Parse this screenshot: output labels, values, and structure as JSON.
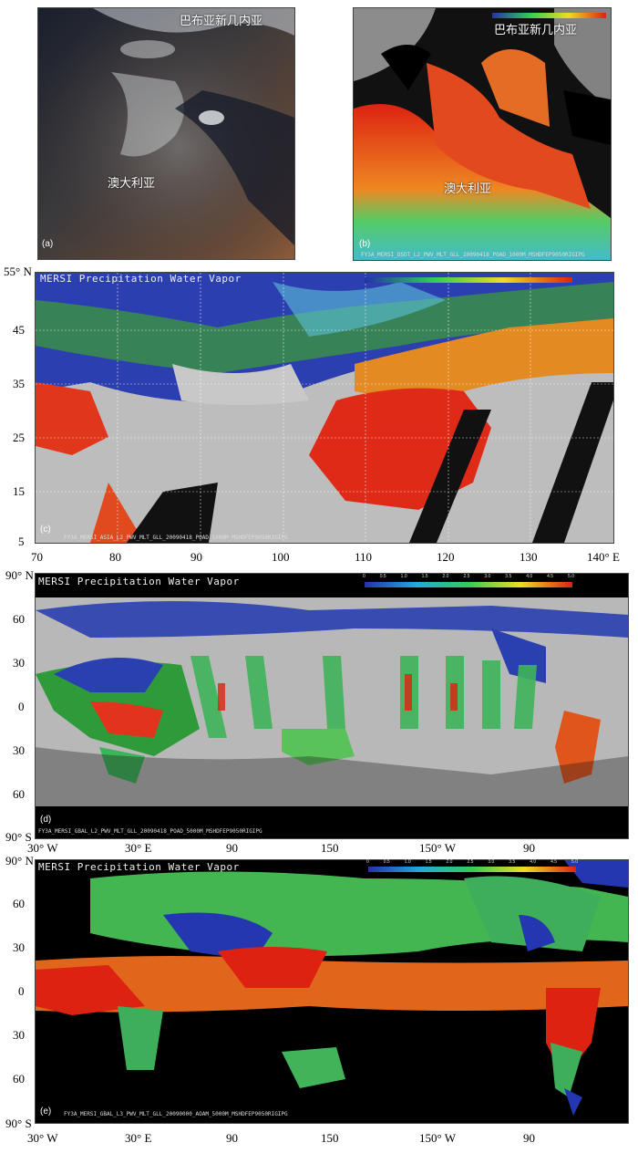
{
  "panels": {
    "a": {
      "label": "(a)",
      "place_top": "巴布亚新几内亚",
      "place_main": "澳大利亚"
    },
    "b": {
      "label": "(b)",
      "place_top": "巴布亚新几内亚",
      "place_main": "澳大利亚",
      "filename": "FY3A_MERSI_DSDT_L2_PWV_MLT_GLL_20090418_POAD_1000M_MSHDFEP9050RIGIPG"
    },
    "c": {
      "label": "(c)",
      "product_title": "MERSI Precipitation Water Vapor",
      "filename": "FY3A_MERSI_ASIA_L2_PWV_MLT_GLL_20090418_POAD_1000M_MSHDFEP9050RIGIPG",
      "y_ticks": [
        "55° N",
        "45",
        "35",
        "25",
        "15",
        "5"
      ],
      "x_ticks": [
        "70",
        "80",
        "90",
        "100",
        "110",
        "120",
        "130",
        "140° E"
      ]
    },
    "d": {
      "label": "(d)",
      "product_title": "MERSI Precipitation Water Vapor",
      "filename": "FY3A_MERSI_GBAL_L2_PWV_MLT_GLL_20090418_POAD_5000M_MSHDFEP9050RIGIPG",
      "y_ticks": [
        "90° N",
        "60",
        "30",
        "0",
        "30",
        "60",
        "90° S"
      ],
      "x_ticks": [
        "30° W",
        "30° E",
        "90",
        "150",
        "150° W",
        "90"
      ],
      "colorbar_ticks": [
        "0",
        "0.5",
        "1.0",
        "1.5",
        "2.0",
        "2.5",
        "3.0",
        "3.5",
        "4.0",
        "4.5",
        "5.0"
      ]
    },
    "e": {
      "label": "(e)",
      "product_title": "MERSI Precipitation Water Vapor",
      "filename": "FY3A_MERSI_GBAL_L3_PWV_MLT_GLL_20090000_AOAM_5000M_MSHDFEP9050RIGIPG",
      "y_ticks": [
        "90° N",
        "60",
        "30",
        "0",
        "30",
        "60",
        "90° S"
      ],
      "x_ticks": [
        "30° W",
        "30° E",
        "90",
        "150",
        "150° W",
        "90"
      ],
      "colorbar_ticks": [
        "0",
        "0.5",
        "1.0",
        "1.5",
        "2.0",
        "2.5",
        "3.0",
        "3.5",
        "4.0",
        "4.5",
        "5.0"
      ]
    }
  },
  "colors": {
    "low": "#2233aa",
    "mid": "#33cc55",
    "high": "#dd2211",
    "cloud": "#bbbbbb",
    "nodata": "#000000"
  }
}
